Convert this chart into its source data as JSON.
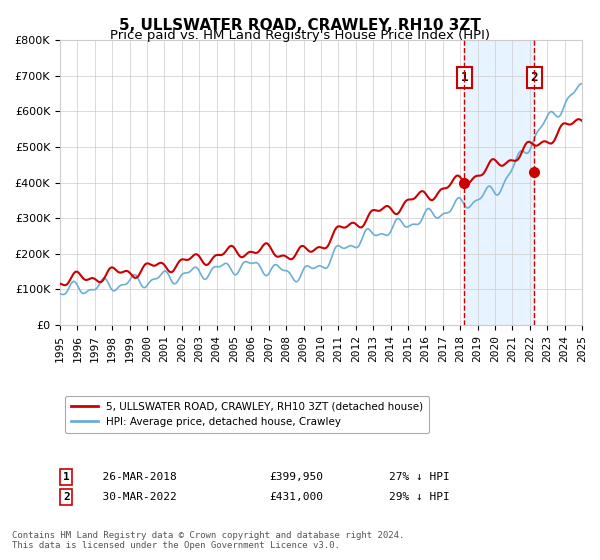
{
  "title": "5, ULLSWATER ROAD, CRAWLEY, RH10 3ZT",
  "subtitle": "Price paid vs. HM Land Registry's House Price Index (HPI)",
  "xlim": [
    1995,
    2025
  ],
  "ylim": [
    0,
    800000
  ],
  "yticks": [
    0,
    100000,
    200000,
    300000,
    400000,
    500000,
    600000,
    700000,
    800000
  ],
  "ytick_labels": [
    "£0",
    "£100K",
    "£200K",
    "£300K",
    "£400K",
    "£500K",
    "£600K",
    "£700K",
    "£800K"
  ],
  "xticks": [
    1995,
    1996,
    1997,
    1998,
    1999,
    2000,
    2001,
    2002,
    2003,
    2004,
    2005,
    2006,
    2007,
    2008,
    2009,
    2010,
    2011,
    2012,
    2013,
    2014,
    2015,
    2016,
    2017,
    2018,
    2019,
    2020,
    2021,
    2022,
    2023,
    2024,
    2025
  ],
  "hpi_color": "#6baed6",
  "price_color": "#cc0000",
  "vline1_x": 2018.23,
  "vline2_x": 2022.25,
  "marker1_x": 2018.23,
  "marker1_y": 399950,
  "marker2_x": 2022.25,
  "marker2_y": 431000,
  "legend_label1": "5, ULLSWATER ROAD, CRAWLEY, RH10 3ZT (detached house)",
  "legend_label2": "HPI: Average price, detached house, Crawley",
  "annot1_num": "1",
  "annot2_num": "2",
  "annot1_date": "26-MAR-2018",
  "annot1_price": "£399,950",
  "annot1_hpi": "27% ↓ HPI",
  "annot2_date": "30-MAR-2022",
  "annot2_price": "£431,000",
  "annot2_hpi": "29% ↓ HPI",
  "footnote": "Contains HM Land Registry data © Crown copyright and database right 2024.\nThis data is licensed under the Open Government Licence v3.0.",
  "background_color": "#ffffff",
  "shaded_color": "#ddeeff",
  "title_fontsize": 11,
  "subtitle_fontsize": 9.5,
  "tick_fontsize": 8
}
